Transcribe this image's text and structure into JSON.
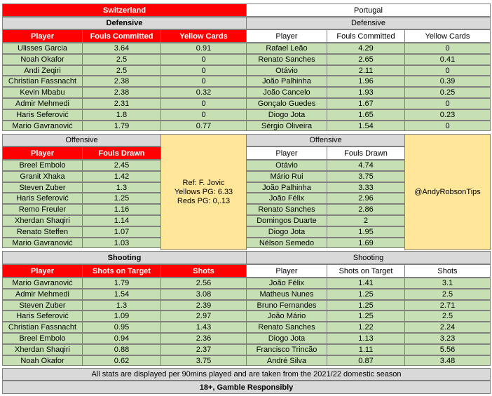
{
  "switzerland": {
    "team": "Switzerland",
    "defensive": {
      "title": "Defensive",
      "headers": [
        "Player",
        "Fouls Committed",
        "Yellow Cards"
      ],
      "rows": [
        [
          "Ulisses Garcia",
          "3.64",
          "0.91"
        ],
        [
          "Noah Okafor",
          "2.5",
          "0"
        ],
        [
          "Andi Zeqiri",
          "2.5",
          "0"
        ],
        [
          "Christian Fassnacht",
          "2.38",
          "0"
        ],
        [
          "Kevin Mbabu",
          "2.38",
          "0.32"
        ],
        [
          "Admir Mehmedi",
          "2.31",
          "0"
        ],
        [
          "Haris Seferović",
          "1.8",
          "0"
        ],
        [
          "Mario Gavranović",
          "1.79",
          "0.77"
        ]
      ]
    },
    "offensive": {
      "title": "Offensive",
      "headers": [
        "Player",
        "Fouls Drawn"
      ],
      "rows": [
        [
          "Breel Embolo",
          "2.45"
        ],
        [
          "Granit Xhaka",
          "1.42"
        ],
        [
          "Steven Zuber",
          "1.3"
        ],
        [
          "Haris Seferović",
          "1.25"
        ],
        [
          "Remo Freuler",
          "1.16"
        ],
        [
          "Xherdan Shaqiri",
          "1.14"
        ],
        [
          "Renato Steffen",
          "1.07"
        ],
        [
          "Mario Gavranović",
          "1.03"
        ]
      ]
    },
    "shooting": {
      "title": "Shooting",
      "headers": [
        "Player",
        "Shots on Target",
        "Shots"
      ],
      "rows": [
        [
          "Mario Gavranović",
          "1.79",
          "2.56"
        ],
        [
          "Admir Mehmedi",
          "1.54",
          "3.08"
        ],
        [
          "Steven Zuber",
          "1.3",
          "2.39"
        ],
        [
          "Haris Seferović",
          "1.09",
          "2.97"
        ],
        [
          "Christian Fassnacht",
          "0.95",
          "1.43"
        ],
        [
          "Breel Embolo",
          "0.94",
          "2.36"
        ],
        [
          "Xherdan Shaqiri",
          "0.88",
          "2.37"
        ],
        [
          "Noah Okafor",
          "0.62",
          "3.75"
        ]
      ]
    }
  },
  "portugal": {
    "team": "Portugal",
    "defensive": {
      "title": "Defensive",
      "headers": [
        "Player",
        "Fouls Committed",
        "Yellow Cards"
      ],
      "rows": [
        [
          "Rafael Leão",
          "4.29",
          "0"
        ],
        [
          "Renato Sanches",
          "2.65",
          "0.41"
        ],
        [
          "Otávio",
          "2.11",
          "0"
        ],
        [
          "João Palhinha",
          "1.96",
          "0.39"
        ],
        [
          "João Cancelo",
          "1.93",
          "0.25"
        ],
        [
          "Gonçalo Guedes",
          "1.67",
          "0"
        ],
        [
          "Diogo Jota",
          "1.65",
          "0.23"
        ],
        [
          "Sérgio Oliveira",
          "1.54",
          "0"
        ]
      ]
    },
    "offensive": {
      "title": "Offensive",
      "headers": [
        "Player",
        "Fouls Drawn"
      ],
      "rows": [
        [
          "Otávio",
          "4.74"
        ],
        [
          "Mário Rui",
          "3.75"
        ],
        [
          "João Palhinha",
          "3.33"
        ],
        [
          "João Félix",
          "2.96"
        ],
        [
          "Renato Sanches",
          "2.86"
        ],
        [
          "Domingos Duarte",
          "2"
        ],
        [
          "Diogo Jota",
          "1.95"
        ],
        [
          "Nélson Semedo",
          "1.69"
        ]
      ]
    },
    "shooting": {
      "title": "Shooting",
      "headers": [
        "Player",
        "Shots on Target",
        "Shots"
      ],
      "rows": [
        [
          "João Félix",
          "1.41",
          "3.1"
        ],
        [
          "Matheus Nunes",
          "1.25",
          "2.5"
        ],
        [
          "Bruno Fernandes",
          "1.25",
          "2.71"
        ],
        [
          "João Mário",
          "1.25",
          "2.5"
        ],
        [
          "Renato Sanches",
          "1.22",
          "2.24"
        ],
        [
          "Diogo Jota",
          "1.13",
          "3.23"
        ],
        [
          "Francisco Trincão",
          "1.11",
          "5.56"
        ],
        [
          "André Silva",
          "0.87",
          "3.48"
        ]
      ]
    }
  },
  "referee_box": {
    "lines": [
      "Ref: F. Jovic",
      "Yellows PG: 6.33",
      "Reds PG: 0,.13"
    ]
  },
  "tipster_box": {
    "text": "@AndyRobsonTips"
  },
  "footer": {
    "note": "All stats are displayed per 90mins played and are taken from the 2021/22 domestic season",
    "disclaimer": "18+, Gamble Responsibly"
  },
  "colors": {
    "switzerland_header": "#ff0000",
    "portugal_header": "#ffffff",
    "section_title": "#d9d9d9",
    "data_cell": "#c6e0b4",
    "info_box": "#ffe699"
  }
}
